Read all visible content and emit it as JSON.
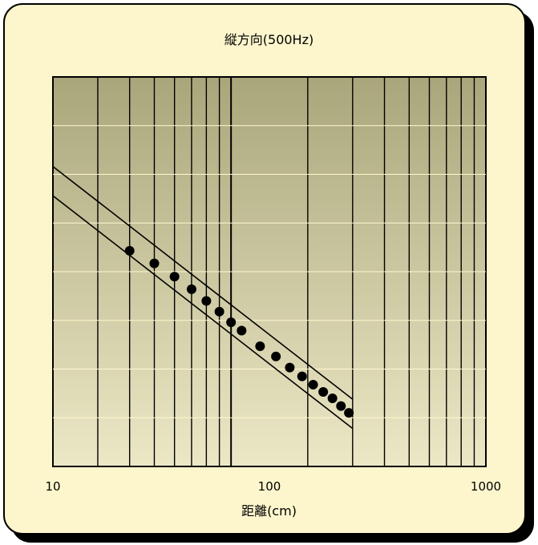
{
  "chart_data": {
    "type": "scatter",
    "title": "縦方向(500Hz)",
    "xlabel": "距離(cm)",
    "x_scale": "log",
    "xlim": [
      20,
      1000
    ],
    "x_tick_labels": [
      {
        "value": 10,
        "label": "10"
      },
      {
        "value": 100,
        "label": "100"
      },
      {
        "value": 1000,
        "label": "1000"
      }
    ],
    "ylim": [
      0,
      8
    ],
    "grid": true,
    "series": [
      {
        "x": [
          40,
          50,
          60,
          70,
          80,
          90,
          100,
          110,
          130,
          150,
          170,
          190,
          210,
          230,
          250,
          270,
          290
        ],
        "y": [
          4.43,
          4.17,
          3.9,
          3.64,
          3.4,
          3.18,
          2.96,
          2.79,
          2.47,
          2.26,
          2.03,
          1.85,
          1.68,
          1.53,
          1.4,
          1.24,
          1.1
        ]
      }
    ],
    "lines": [
      {
        "x": [
          20,
          300
        ],
        "y": [
          6.16,
          1.38
        ]
      },
      {
        "x": [
          20,
          300
        ],
        "y": [
          5.56,
          0.78
        ]
      }
    ],
    "colors": {
      "plot_bg_top": "#aaa67b",
      "plot_bg_bottom": "#ece8c6",
      "card_bg": "#fdf6cc",
      "marker": "#000000"
    }
  }
}
